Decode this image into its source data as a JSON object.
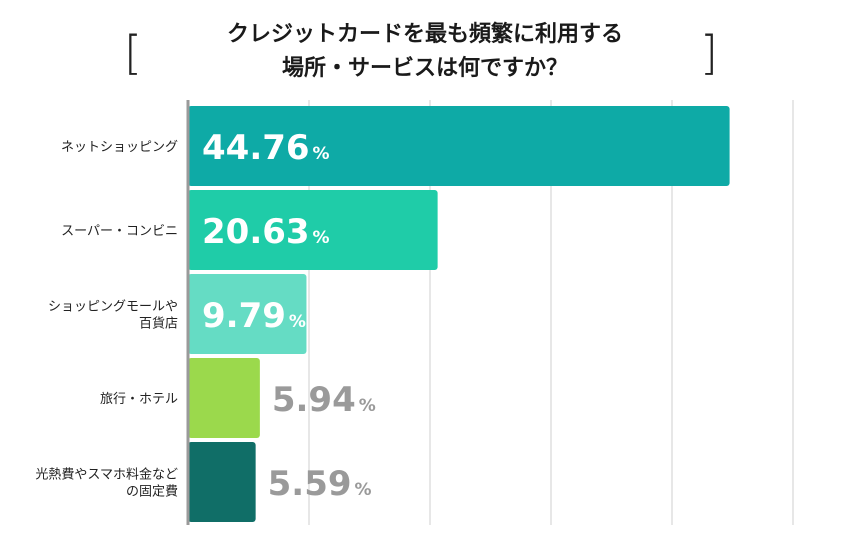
{
  "header": {
    "title_line1": "クレジットカードを最も頻繁に利用する",
    "title_line2": "場所・サービスは何ですか？",
    "bracket_left": "[",
    "bracket_right": "]"
  },
  "chart_data": {
    "type": "bar",
    "orientation": "horizontal",
    "title": "クレジットカードを最も頻繁に利用する場所・サービスは何ですか？",
    "categories": [
      [
        "ネットショッピング"
      ],
      [
        "スーパー・コンビニ"
      ],
      [
        "ショッピングモールや",
        "百貨店"
      ],
      [
        "旅行・ホテル"
      ],
      [
        "光熱費やスマホ料金など",
        "の固定費"
      ]
    ],
    "values": [
      44.76,
      20.63,
      9.79,
      5.94,
      5.59
    ],
    "value_labels": [
      "44.76",
      "20.63",
      "9.79",
      "5.94",
      "5.59"
    ],
    "unit": "%",
    "colors": [
      "#0eaaa6",
      "#1fcca8",
      "#65dcc4",
      "#9bd94c",
      "#106e67"
    ],
    "label_color_inside": "#ffffff",
    "label_color_outside": "#9a9a9a",
    "xlim": [
      0,
      50
    ],
    "grid": true,
    "xlabel": "",
    "ylabel": ""
  }
}
